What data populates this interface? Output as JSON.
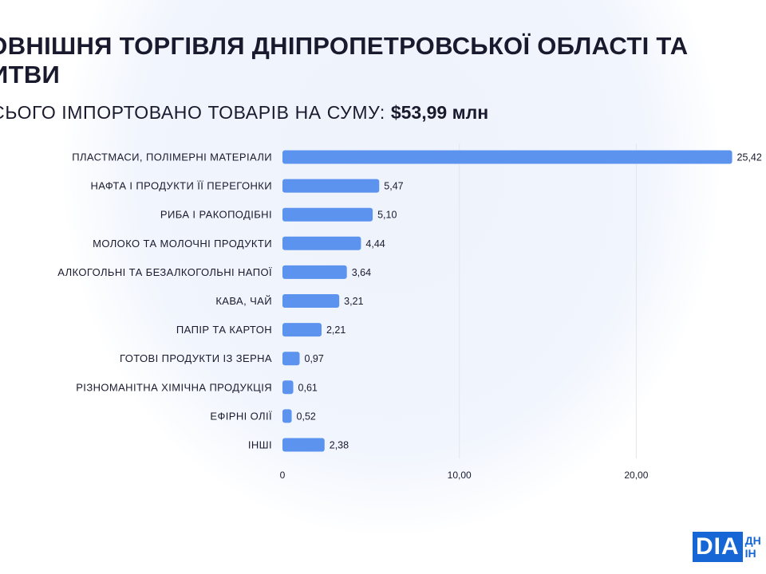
{
  "header": {
    "title": "ЗОВНІШНЯ ТОРГІВЛЯ ДНІПРОПЕТРОВСЬКОЇ ОБЛАСТІ ТА ЛИТВИ",
    "subtitle_prefix": "ВСЬОГО ІМПОРТОВАНО ТОВАРІВ НА СУМУ:",
    "subtitle_amount": "$53,99 млн"
  },
  "chart_data": {
    "type": "bar",
    "orientation": "horizontal",
    "categories": [
      "ПЛАСТМАСИ, ПОЛІМЕРНІ МАТЕРІАЛИ",
      "НАФТА І ПРОДУКТИ ЇЇ ПЕРЕГОНКИ",
      "РИБА І РАКОПОДІБНІ",
      "МОЛОКО ТА МОЛОЧНІ ПРОДУКТИ",
      "АЛКОГОЛЬНІ ТА БЕЗАЛКОГОЛЬНІ НАПОЇ",
      "КАВА, ЧАЙ",
      "ПАПІР ТА КАРТОН",
      "ГОТОВІ ПРОДУКТИ ІЗ ЗЕРНА",
      "РІЗНОМАНІТНА ХІМІЧНА ПРОДУКЦІЯ",
      "ЕФІРНІ ОЛІЇ",
      "ІНШІ"
    ],
    "values": [
      25.42,
      5.47,
      5.1,
      4.44,
      3.64,
      3.21,
      2.21,
      0.97,
      0.61,
      0.52,
      2.38
    ],
    "value_labels": [
      "25,42",
      "5,47",
      "5,10",
      "4,44",
      "3,64",
      "3,21",
      "2,21",
      "0,97",
      "0,61",
      "0,52",
      "2,38"
    ],
    "xticks": [
      0,
      10,
      20
    ],
    "xtick_labels": [
      "0",
      "10,00",
      "20,00"
    ],
    "xlim": [
      0,
      25.42
    ],
    "grid": true,
    "bar_color": "#5b93ee",
    "grid_color": "#e3e6ec"
  },
  "logo": {
    "mark": "DIA",
    "line1": "ДН",
    "line2": "ІН"
  }
}
